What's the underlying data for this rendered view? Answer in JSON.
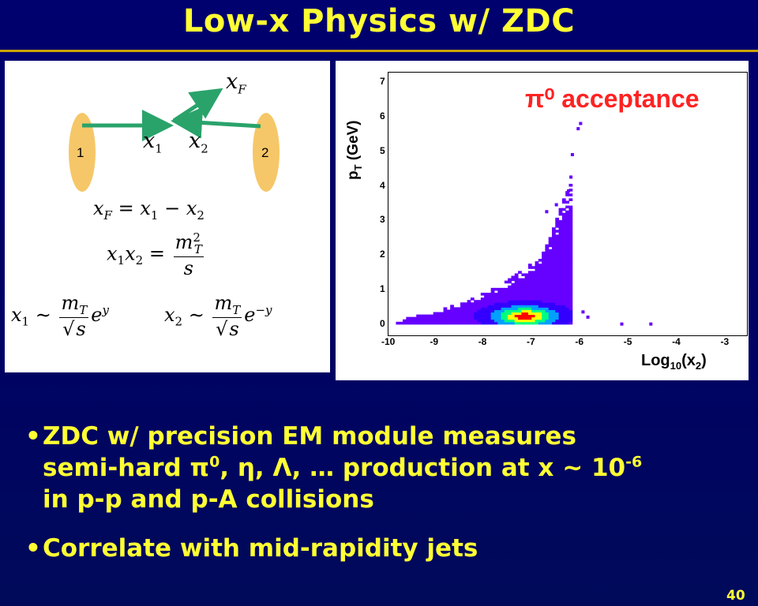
{
  "slide": {
    "title": "Low-x Physics w/ ZDC",
    "page_number": "40"
  },
  "diagram": {
    "beam1_label": "1",
    "beam2_label": "2",
    "xF": "x",
    "xF_sub": "F",
    "x1": "x",
    "x1_sub": "1",
    "x2": "x",
    "x2_sub": "2"
  },
  "equations": {
    "eq1": "x_F = x_1 − x_2",
    "eq2": "x_1 x_2 = m_T^2 / s",
    "eq3": "x_1 ~ (m_T/√s) e^y",
    "eq4": "x_2 ~ (m_T/√s) e^−y"
  },
  "plot": {
    "acceptance_label": "π⁰ acceptance",
    "y_label": "p",
    "y_label_sub": "T",
    "y_label_unit": " (GeV)",
    "x_label": "Log",
    "x_label_sub": "10",
    "x_label_arg": "(x",
    "x_label_arg_sub": "2",
    "x_label_close": ")",
    "y_ticks": [
      "0",
      "1",
      "2",
      "3",
      "4",
      "5",
      "6",
      "7"
    ],
    "x_ticks": [
      "-10",
      "-9",
      "-8",
      "-7",
      "-6",
      "-5",
      "-4",
      "-3"
    ]
  },
  "chart_data": {
    "type": "heatmap",
    "title": "π0 acceptance",
    "xlabel": "Log10(x2)",
    "ylabel": "pT (GeV)",
    "xlim": [
      -10,
      -2.6
    ],
    "ylim": [
      -0.3,
      7.3
    ],
    "color_scale": [
      "#6600ff",
      "#3300ff",
      "#00a0ff",
      "#00ff80",
      "#ffff00",
      "#ff0000"
    ],
    "bands": [
      {
        "x": -9.6,
        "pt_max": 0.15
      },
      {
        "x": -9.0,
        "pt_max": 0.35
      },
      {
        "x": -8.5,
        "pt_max": 0.6
      },
      {
        "x": -8.0,
        "pt_max": 0.9
      },
      {
        "x": -7.5,
        "pt_max": 1.3
      },
      {
        "x": -7.0,
        "pt_max": 1.8
      },
      {
        "x": -6.7,
        "pt_max": 2.4
      },
      {
        "x": -6.4,
        "pt_max": 3.6
      },
      {
        "x": -6.2,
        "pt_max": 4.2
      }
    ],
    "hot_spot": {
      "x": -7.2,
      "pt": 0.2
    }
  },
  "bullets": {
    "b1_line1": "ZDC w/ precision EM module measures",
    "b1_line2_a": "semi-hard π",
    "b1_line2_sup1": "0",
    "b1_line2_b": ", η, Λ, … production at x ~ 10",
    "b1_line2_sup2": "-6",
    "b1_line3": "in p-p and p-A collisions",
    "b2": "Correlate with mid-rapidity jets"
  }
}
